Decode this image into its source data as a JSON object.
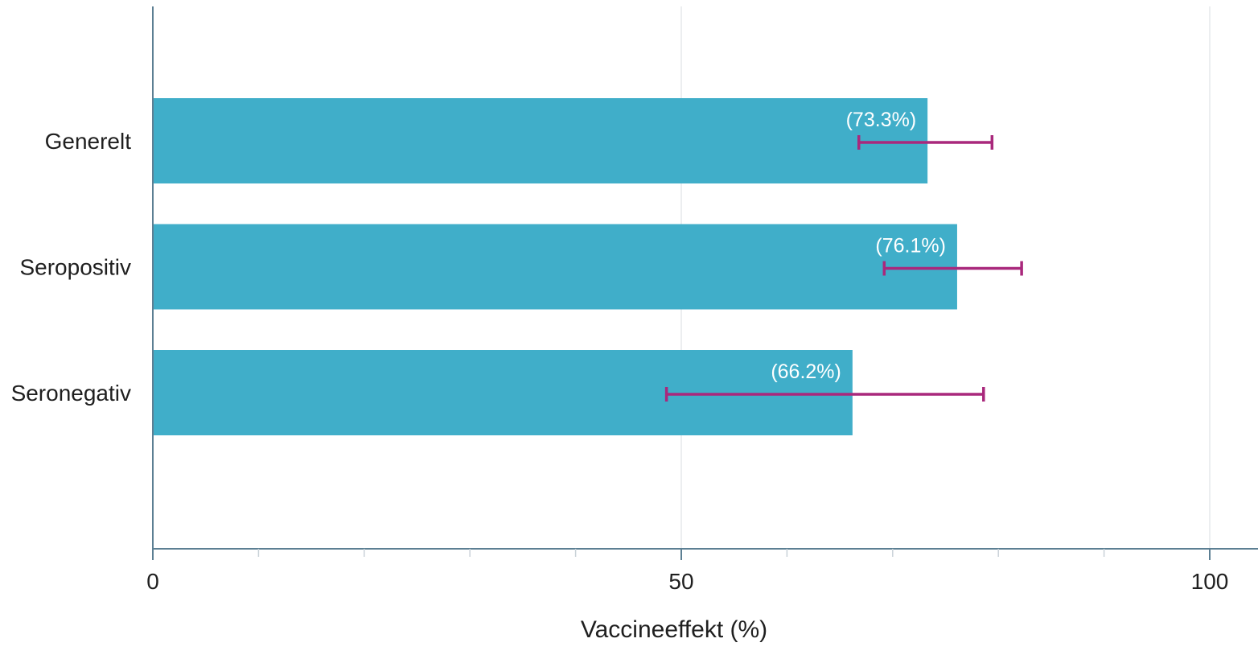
{
  "chart_data": {
    "type": "bar",
    "orientation": "horizontal",
    "categories": [
      "Generelt",
      "Seropositiv",
      "Seronegativ"
    ],
    "series": [
      {
        "values": [
          73.3,
          76.1,
          66.2
        ],
        "value_labels": [
          "(73.3%)",
          "(76.1%)",
          "(66.2%)"
        ],
        "error_low": [
          66.8,
          69.2,
          48.6
        ],
        "error_high": [
          79.4,
          82.2,
          78.6
        ]
      }
    ],
    "title": "",
    "xlabel": "Vaccineeffekt (%)",
    "ylabel": "",
    "xlim": [
      0,
      105
    ],
    "xticks": [
      0,
      50,
      100
    ],
    "grid": true,
    "legend": "none"
  },
  "colors": {
    "bar": "#40aec9",
    "error_bar": "#a9287c",
    "axis": "#5c7f93",
    "grid": "#e6e9ec"
  }
}
